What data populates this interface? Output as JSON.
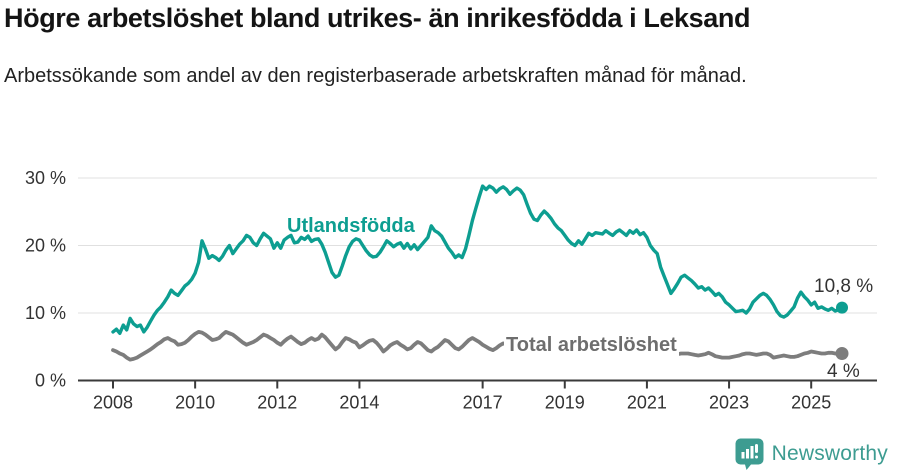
{
  "title": "Högre arbetslöshet bland utrikes- än inrikesfödda i Leksand",
  "subtitle": "Arbetssökande som andel av den registerbaserade arbetskraften månad för månad.",
  "branding": {
    "logo_text": "Newsworthy",
    "brand_color": "#3d9c91"
  },
  "colors": {
    "series_teal": "#0d9e91",
    "series_gray": "#7d7d7d",
    "label_gray": "#6e6e6e",
    "axis_dark": "#3a3a3a",
    "gridline": "#e0e0e0",
    "tick_text": "#333333"
  },
  "chart_data": {
    "type": "line",
    "title": "Högre arbetslöshet bland utrikes- än inrikesfödda i Leksand",
    "subtitle": "Arbetssökande som andel av den registerbaserade arbetskraften månad för månad.",
    "frequency": "monthly",
    "x_start": "2008-01",
    "x_end": "2025-10",
    "grid": true,
    "legend_position": "inline-labels",
    "ylim": [
      0,
      32
    ],
    "y_ticks": [
      {
        "value": 0,
        "label": "0 %"
      },
      {
        "value": 10,
        "label": "10 %"
      },
      {
        "value": 20,
        "label": "20 %"
      },
      {
        "value": 30,
        "label": "30 %"
      }
    ],
    "x_ticks": [
      {
        "year": 2008,
        "label": "2008"
      },
      {
        "year": 2010,
        "label": "2010"
      },
      {
        "year": 2012,
        "label": "2012"
      },
      {
        "year": 2014,
        "label": "2014"
      },
      {
        "year": 2017,
        "label": "2017"
      },
      {
        "year": 2019,
        "label": "2019"
      },
      {
        "year": 2021,
        "label": "2021"
      },
      {
        "year": 2023,
        "label": "2023"
      },
      {
        "year": 2025,
        "label": "2025"
      }
    ],
    "series": [
      {
        "name": "Utlandsfödda",
        "color": "#0d9e91",
        "end_label": "10,8 %",
        "end_value": 10.8,
        "values": [
          7.2,
          7.6,
          7.0,
          8.2,
          7.5,
          9.2,
          8.4,
          8.0,
          8.2,
          7.2,
          7.9,
          8.8,
          9.7,
          10.4,
          10.9,
          11.6,
          12.4,
          13.4,
          12.9,
          12.6,
          13.3,
          14.0,
          14.4,
          15.0,
          15.9,
          17.5,
          20.7,
          19.5,
          18.1,
          18.5,
          18.2,
          17.8,
          18.4,
          19.3,
          20.0,
          18.8,
          19.5,
          20.2,
          20.7,
          21.5,
          21.2,
          20.4,
          20.0,
          21.0,
          21.8,
          21.4,
          21.0,
          19.6,
          20.4,
          19.6,
          20.8,
          21.2,
          21.5,
          20.4,
          20.5,
          21.2,
          20.9,
          21.4,
          20.6,
          20.9,
          21.0,
          20.2,
          19.0,
          17.5,
          16.0,
          15.3,
          15.6,
          17.0,
          18.5,
          19.8,
          20.6,
          21.0,
          20.8,
          20.0,
          19.2,
          18.6,
          18.3,
          18.4,
          19.0,
          19.8,
          20.7,
          20.3,
          19.8,
          20.2,
          20.4,
          19.6,
          20.3,
          19.5,
          20.1,
          19.4,
          20.0,
          20.6,
          21.2,
          22.9,
          22.2,
          21.9,
          21.4,
          20.5,
          19.6,
          19.0,
          18.2,
          18.6,
          18.2,
          19.5,
          21.5,
          23.7,
          25.5,
          27.2,
          28.8,
          28.3,
          28.8,
          28.5,
          27.9,
          28.4,
          28.7,
          28.3,
          27.6,
          28.1,
          28.5,
          28.2,
          27.5,
          26.1,
          24.8,
          23.9,
          23.7,
          24.5,
          25.1,
          24.6,
          24.0,
          23.2,
          22.6,
          22.2,
          21.5,
          20.8,
          20.3,
          20.0,
          20.7,
          20.2,
          21.0,
          21.8,
          21.5,
          21.9,
          21.8,
          21.7,
          22.2,
          21.8,
          21.5,
          22.0,
          22.3,
          21.9,
          21.5,
          22.2,
          21.8,
          22.3,
          21.6,
          21.9,
          21.2,
          20.0,
          19.3,
          18.8,
          16.8,
          15.5,
          14.2,
          12.9,
          13.6,
          14.4,
          15.3,
          15.6,
          15.2,
          14.8,
          14.3,
          13.7,
          13.9,
          13.4,
          13.7,
          13.2,
          12.6,
          12.9,
          12.4,
          11.6,
          11.2,
          10.7,
          10.2,
          10.3,
          10.4,
          10.0,
          10.6,
          11.6,
          12.1,
          12.6,
          12.9,
          12.6,
          12.0,
          11.2,
          10.2,
          9.6,
          9.4,
          9.7,
          10.3,
          10.9,
          12.2,
          13.1,
          12.4,
          11.9,
          11.2,
          11.6,
          10.7,
          10.9,
          10.6,
          10.4,
          10.7,
          10.3,
          10.5,
          10.8
        ]
      },
      {
        "name": "Total arbetslöshet",
        "color": "#7d7d7d",
        "end_label": "4 %",
        "end_value": 4.0,
        "values": [
          4.5,
          4.3,
          4.0,
          3.8,
          3.4,
          3.1,
          3.2,
          3.4,
          3.7,
          4.0,
          4.3,
          4.6,
          5.0,
          5.4,
          5.7,
          6.1,
          6.3,
          6.0,
          5.8,
          5.3,
          5.4,
          5.6,
          6.0,
          6.5,
          6.9,
          7.2,
          7.1,
          6.8,
          6.4,
          6.0,
          6.1,
          6.3,
          6.8,
          7.2,
          7.0,
          6.8,
          6.4,
          6.0,
          5.6,
          5.3,
          5.5,
          5.7,
          6.0,
          6.4,
          6.8,
          6.6,
          6.3,
          6.0,
          5.6,
          5.3,
          5.8,
          6.2,
          6.5,
          6.1,
          5.7,
          5.4,
          5.6,
          6.0,
          6.3,
          6.0,
          6.2,
          6.8,
          6.4,
          5.8,
          5.2,
          4.6,
          5.0,
          5.7,
          6.3,
          6.1,
          5.8,
          5.6,
          4.9,
          5.2,
          5.6,
          5.9,
          6.0,
          5.6,
          5.0,
          4.3,
          4.7,
          5.2,
          5.5,
          5.7,
          5.3,
          5.0,
          4.6,
          4.8,
          5.3,
          5.7,
          5.5,
          5.0,
          4.5,
          4.3,
          4.7,
          5.0,
          5.5,
          6.0,
          5.8,
          5.3,
          4.8,
          4.6,
          5.0,
          5.5,
          6.0,
          6.3,
          6.0,
          5.7,
          5.3,
          5.0,
          4.7,
          4.5,
          4.8,
          5.2,
          5.5,
          5.3,
          5.0,
          4.8,
          5.0,
          5.2,
          5.0,
          4.7,
          4.4,
          4.2,
          4.4,
          4.7,
          5.0,
          4.8,
          4.5,
          4.3,
          4.5,
          4.7,
          4.6,
          4.4,
          4.2,
          4.0,
          4.2,
          4.5,
          4.7,
          4.5,
          4.3,
          4.2,
          4.4,
          4.6,
          4.8,
          5.0,
          5.5,
          5.8,
          5.6,
          5.4,
          5.2,
          5.0,
          4.9,
          4.8,
          4.7,
          4.6,
          4.5,
          4.4,
          4.3,
          4.2,
          4.1,
          4.0,
          3.9,
          3.8,
          3.8,
          3.9,
          4.0,
          4.0,
          4.0,
          3.9,
          3.8,
          3.7,
          3.8,
          3.9,
          4.1,
          3.9,
          3.6,
          3.5,
          3.4,
          3.4,
          3.4,
          3.5,
          3.6,
          3.7,
          3.9,
          4.0,
          4.0,
          3.9,
          3.8,
          3.9,
          4.0,
          4.0,
          3.8,
          3.4,
          3.5,
          3.6,
          3.7,
          3.6,
          3.5,
          3.5,
          3.6,
          3.8,
          4.0,
          4.1,
          4.3,
          4.2,
          4.1,
          4.0,
          4.0,
          4.1,
          4.1,
          4.0,
          3.9,
          4.0
        ]
      }
    ]
  }
}
